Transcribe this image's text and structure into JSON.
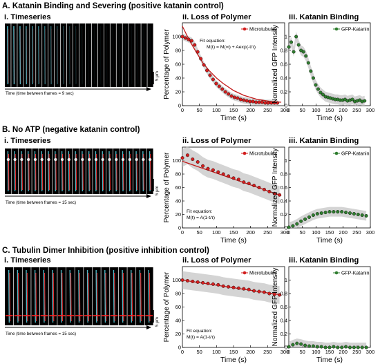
{
  "colors": {
    "polymer": "#d21e1e",
    "katanin": "#2f7d2f",
    "band": "#bdbdbd",
    "fit": "#c41a1a"
  },
  "rows": [
    {
      "title": "A. Katanin Binding and Severing (positive katanin control)",
      "timeseries_label": "i. Timeseries",
      "frame_caption": "Time (time between frames = 9 sec)",
      "scale_label": "5 μm",
      "polymer_title": "ii. Loss of Polymer",
      "katanin_title": "iii. Katanin Binding"
    },
    {
      "title": "B. No ATP (negative katanin control)",
      "timeseries_label": "i. Timeseries",
      "frame_caption": "Time (time between frames = 15 sec)",
      "scale_label": "5 μm",
      "polymer_title": "ii. Loss of Polymer",
      "katanin_title": "iii. Katanin Binding"
    },
    {
      "title": "C. Tubulin Dimer Inhibition (positive inhibition control)",
      "timeseries_label": "i. Timeseries",
      "frame_caption": "Time (time between frames = 15 sec)",
      "scale_label": "5 μm",
      "polymer_title": "ii. Loss of Polymer",
      "katanin_title": "iii. Katanin Binding"
    }
  ],
  "chart_data": [
    {
      "panel": "A.ii",
      "type": "scatter",
      "xlabel": "Time (s)",
      "ylabel": "Percentage of Polymer",
      "xlim": [
        0,
        300
      ],
      "ylim": [
        0,
        120
      ],
      "xticks": [
        0,
        50,
        100,
        150,
        200,
        250,
        300
      ],
      "yticks": [
        0,
        20,
        40,
        60,
        80,
        100
      ],
      "legend": "Microtubules",
      "fit_text": [
        "Fit equation:",
        "M(t) = M(∞) + Aexp(-t/τ)"
      ],
      "series": [
        {
          "name": "Microtubules",
          "x": [
            0,
            9,
            18,
            27,
            36,
            45,
            54,
            63,
            72,
            81,
            90,
            99,
            108,
            117,
            126,
            135,
            144,
            153,
            162,
            171,
            180,
            189,
            198,
            207,
            216,
            225,
            234,
            243,
            252,
            261,
            270,
            279
          ],
          "values": [
            100,
            98,
            96,
            94,
            88,
            78,
            68,
            59,
            51,
            44,
            38,
            32,
            28,
            24,
            20,
            17,
            14,
            12,
            11,
            9,
            8,
            7,
            6,
            6,
            5,
            5,
            5,
            4,
            4,
            4,
            4,
            4
          ]
        }
      ],
      "fit": {
        "x": [
          0,
          20,
          40,
          60,
          80,
          100,
          120,
          150,
          180,
          220,
          260,
          290
        ],
        "values": [
          115,
          95,
          78,
          62,
          50,
          40,
          32,
          22,
          15,
          9,
          6,
          5
        ]
      }
    },
    {
      "panel": "A.iii",
      "type": "scatter",
      "xlabel": "Time (s)",
      "ylabel": "Normalized GFP Intensity",
      "xlim": [
        0,
        300
      ],
      "ylim": [
        0,
        1.2
      ],
      "xticks": [
        0,
        50,
        100,
        150,
        200,
        250,
        300
      ],
      "yticks": [
        0,
        0.2,
        0.4,
        0.6,
        0.8,
        1
      ],
      "legend": "GFP-Katanin",
      "series": [
        {
          "name": "GFP-Katanin",
          "x": [
            0,
            9,
            18,
            27,
            36,
            45,
            54,
            63,
            72,
            81,
            90,
            99,
            108,
            117,
            126,
            135,
            144,
            153,
            162,
            171,
            180,
            189,
            198,
            207,
            216,
            225,
            234,
            243,
            252,
            261,
            270,
            279
          ],
          "values": [
            0.85,
            0.92,
            0.78,
            1.0,
            0.88,
            0.8,
            0.78,
            0.72,
            0.62,
            0.5,
            0.4,
            0.3,
            0.24,
            0.19,
            0.16,
            0.13,
            0.12,
            0.11,
            0.1,
            0.09,
            0.09,
            0.08,
            0.08,
            0.09,
            0.07,
            0.08,
            0.09,
            0.06,
            0.07,
            0.08,
            0.06,
            0.07
          ]
        }
      ]
    },
    {
      "panel": "B.ii",
      "type": "scatter",
      "xlabel": "Time (s)",
      "ylabel": "Percentage of Polymer",
      "xlim": [
        0,
        300
      ],
      "ylim": [
        0,
        120
      ],
      "xticks": [
        0,
        50,
        100,
        150,
        200,
        250,
        300
      ],
      "yticks": [
        0,
        20,
        40,
        60,
        80,
        100
      ],
      "legend": "Microtubules",
      "fit_text": [
        "Fit equation:",
        "M(t) = A(1-t/τ)"
      ],
      "series": [
        {
          "name": "Microtubules",
          "x": [
            0,
            15,
            30,
            45,
            60,
            75,
            90,
            105,
            120,
            135,
            150,
            165,
            180,
            195,
            210,
            225,
            240,
            255,
            270,
            285
          ],
          "values": [
            104,
            108,
            102,
            98,
            92,
            88,
            86,
            83,
            80,
            77,
            74,
            72,
            68,
            66,
            63,
            60,
            57,
            54,
            51,
            49
          ]
        }
      ],
      "fit": {
        "x": [
          0,
          290
        ],
        "values": [
          99,
          48
        ]
      }
    },
    {
      "panel": "B.iii",
      "type": "scatter",
      "xlabel": "Time (s)",
      "ylabel": "Normalized GFP Intensity",
      "xlim": [
        0,
        300
      ],
      "ylim": [
        0,
        1.2
      ],
      "xticks": [
        0,
        50,
        100,
        150,
        200,
        250,
        300
      ],
      "yticks": [
        0,
        0.2,
        0.4,
        0.6,
        0.8,
        1
      ],
      "legend": "GFP-Katanin",
      "series": [
        {
          "name": "GFP-Katanin",
          "x": [
            0,
            15,
            30,
            45,
            60,
            75,
            90,
            105,
            120,
            135,
            150,
            165,
            180,
            195,
            210,
            225,
            240,
            255,
            270,
            285
          ],
          "values": [
            0.01,
            0.03,
            0.06,
            0.1,
            0.13,
            0.16,
            0.19,
            0.21,
            0.22,
            0.23,
            0.24,
            0.24,
            0.24,
            0.24,
            0.23,
            0.22,
            0.21,
            0.2,
            0.19,
            0.18
          ]
        }
      ]
    },
    {
      "panel": "C.ii",
      "type": "scatter",
      "xlabel": "Time (s)",
      "ylabel": "Percentage of Polymer",
      "xlim": [
        0,
        300
      ],
      "ylim": [
        0,
        120
      ],
      "xticks": [
        0,
        50,
        100,
        150,
        200,
        250,
        300
      ],
      "yticks": [
        0,
        20,
        40,
        60,
        80,
        100
      ],
      "legend": "Microtubules",
      "fit_text": [
        "Fit equation:",
        "M(t) = A(1-t/τ)"
      ],
      "series": [
        {
          "name": "Microtubules",
          "x": [
            0,
            15,
            30,
            45,
            60,
            75,
            90,
            105,
            120,
            135,
            150,
            165,
            180,
            195,
            210,
            225,
            240,
            255,
            270,
            285
          ],
          "values": [
            100,
            99,
            98,
            97,
            96,
            95,
            94,
            93,
            91,
            90,
            89,
            88,
            87,
            86,
            84,
            83,
            82,
            80,
            79,
            78
          ]
        }
      ],
      "fit": {
        "x": [
          0,
          290
        ],
        "values": [
          100,
          78
        ]
      }
    },
    {
      "panel": "C.iii",
      "type": "scatter",
      "xlabel": "Time (s)",
      "ylabel": "Normalized GFP Intensity",
      "xlim": [
        0,
        300
      ],
      "ylim": [
        0,
        1.2
      ],
      "xticks": [
        0,
        50,
        100,
        150,
        200,
        250,
        300
      ],
      "yticks": [
        0,
        0.2,
        0.4,
        0.6,
        0.8,
        1
      ],
      "legend": "GFP-Katanin",
      "series": [
        {
          "name": "GFP-Katanin",
          "x": [
            0,
            15,
            30,
            45,
            60,
            75,
            90,
            105,
            120,
            135,
            150,
            165,
            180,
            195,
            210,
            225,
            240,
            255,
            270,
            285
          ],
          "values": [
            0.01,
            0.04,
            0.06,
            0.05,
            0.03,
            0.02,
            0.02,
            0.01,
            0.01,
            0.0,
            0.0,
            0.01,
            0.0,
            0.0,
            0.01,
            0.0,
            0.0,
            0.0,
            0.0,
            0.0
          ]
        }
      ]
    }
  ]
}
